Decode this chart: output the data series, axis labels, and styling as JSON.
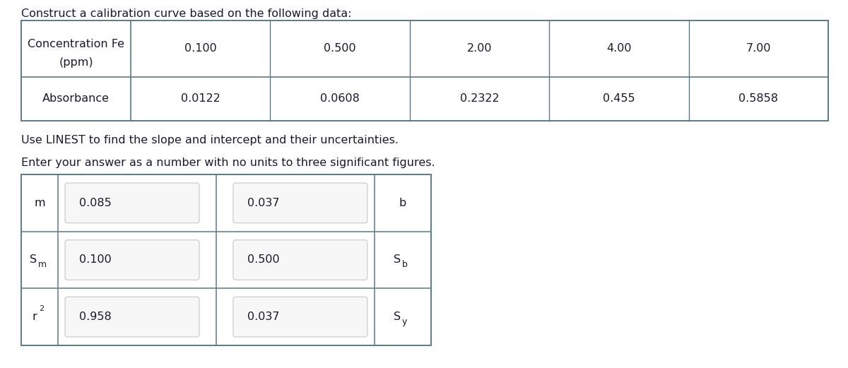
{
  "title": "Construct a calibration curve based on the following data:",
  "top_table": {
    "concentrations": [
      "0.100",
      "0.500",
      "2.00",
      "4.00",
      "7.00"
    ],
    "absorbances": [
      "0.0122",
      "0.0608",
      "0.2322",
      "0.455",
      "0.5858"
    ]
  },
  "text1": "Use LINEST to find the slope and intercept and their uncertainties.",
  "text2": "Enter your answer as a number with no units to three significant figures.",
  "bottom_table": {
    "col1_values": [
      "0.085",
      "0.100",
      "0.958"
    ],
    "col2_values": [
      "0.037",
      "0.500",
      "0.037"
    ]
  },
  "bg_color": "#ffffff",
  "border_color": "#5a7a8a",
  "text_color": "#1a1a2e",
  "input_box_color": "#f7f7f7",
  "input_box_border": "#cccccc",
  "font_size": 11.5
}
